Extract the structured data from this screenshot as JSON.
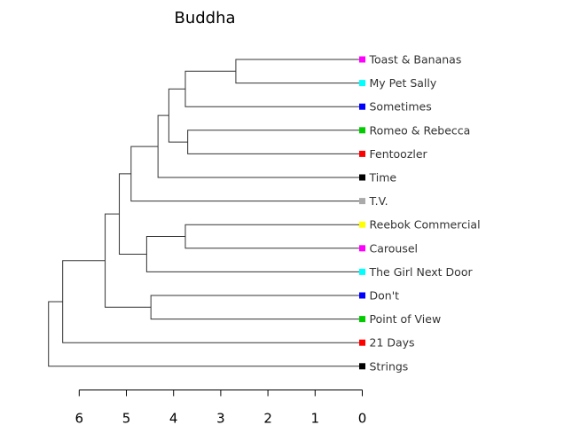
{
  "chart_data": {
    "type": "dendrogram",
    "title": "Buddha",
    "xlim": [
      6,
      0
    ],
    "ticks": [
      6,
      5,
      4,
      3,
      2,
      1,
      0
    ],
    "tick_labels": [
      "6",
      "5",
      "4",
      "3",
      "2",
      "1",
      "0"
    ],
    "leaves": [
      {
        "label": "Toast & Bananas",
        "color": "#ff00ff"
      },
      {
        "label": "My Pet Sally",
        "color": "#00ffff"
      },
      {
        "label": "Sometimes",
        "color": "#0000ff"
      },
      {
        "label": "Romeo & Rebecca",
        "color": "#00cc00"
      },
      {
        "label": "Fentoozler",
        "color": "#ff0000"
      },
      {
        "label": "Time",
        "color": "#000000"
      },
      {
        "label": "T.V.",
        "color": "#aaaaaa"
      },
      {
        "label": "Reebok Commercial",
        "color": "#ffff00"
      },
      {
        "label": "Carousel",
        "color": "#ff00ff"
      },
      {
        "label": "The Girl Next Door",
        "color": "#00ffff"
      },
      {
        "label": "Don't",
        "color": "#0000ff"
      },
      {
        "label": "Point of View",
        "color": "#00cc00"
      },
      {
        "label": "21 Days",
        "color": "#ff0000"
      },
      {
        "label": "Strings",
        "color": "#000000"
      }
    ],
    "merges": [
      {
        "children": [
          "L0",
          "L1"
        ],
        "height": 2.68
      },
      {
        "children": [
          "M0",
          "L2"
        ],
        "height": 3.75
      },
      {
        "children": [
          "L3",
          "L4"
        ],
        "height": 3.7
      },
      {
        "children": [
          "M1",
          "M2"
        ],
        "height": 4.1
      },
      {
        "children": [
          "M3",
          "L5"
        ],
        "height": 4.33
      },
      {
        "children": [
          "M4",
          "L6"
        ],
        "height": 4.9
      },
      {
        "children": [
          "L7",
          "L8"
        ],
        "height": 3.75
      },
      {
        "children": [
          "M6",
          "L9"
        ],
        "height": 4.57
      },
      {
        "children": [
          "M5",
          "M7"
        ],
        "height": 5.15
      },
      {
        "children": [
          "L10",
          "L11"
        ],
        "height": 4.48
      },
      {
        "children": [
          "M8",
          "M9"
        ],
        "height": 5.45
      },
      {
        "children": [
          "M10",
          "L12"
        ],
        "height": 6.35
      },
      {
        "children": [
          "M11",
          "L13"
        ],
        "height": 6.65
      }
    ]
  }
}
